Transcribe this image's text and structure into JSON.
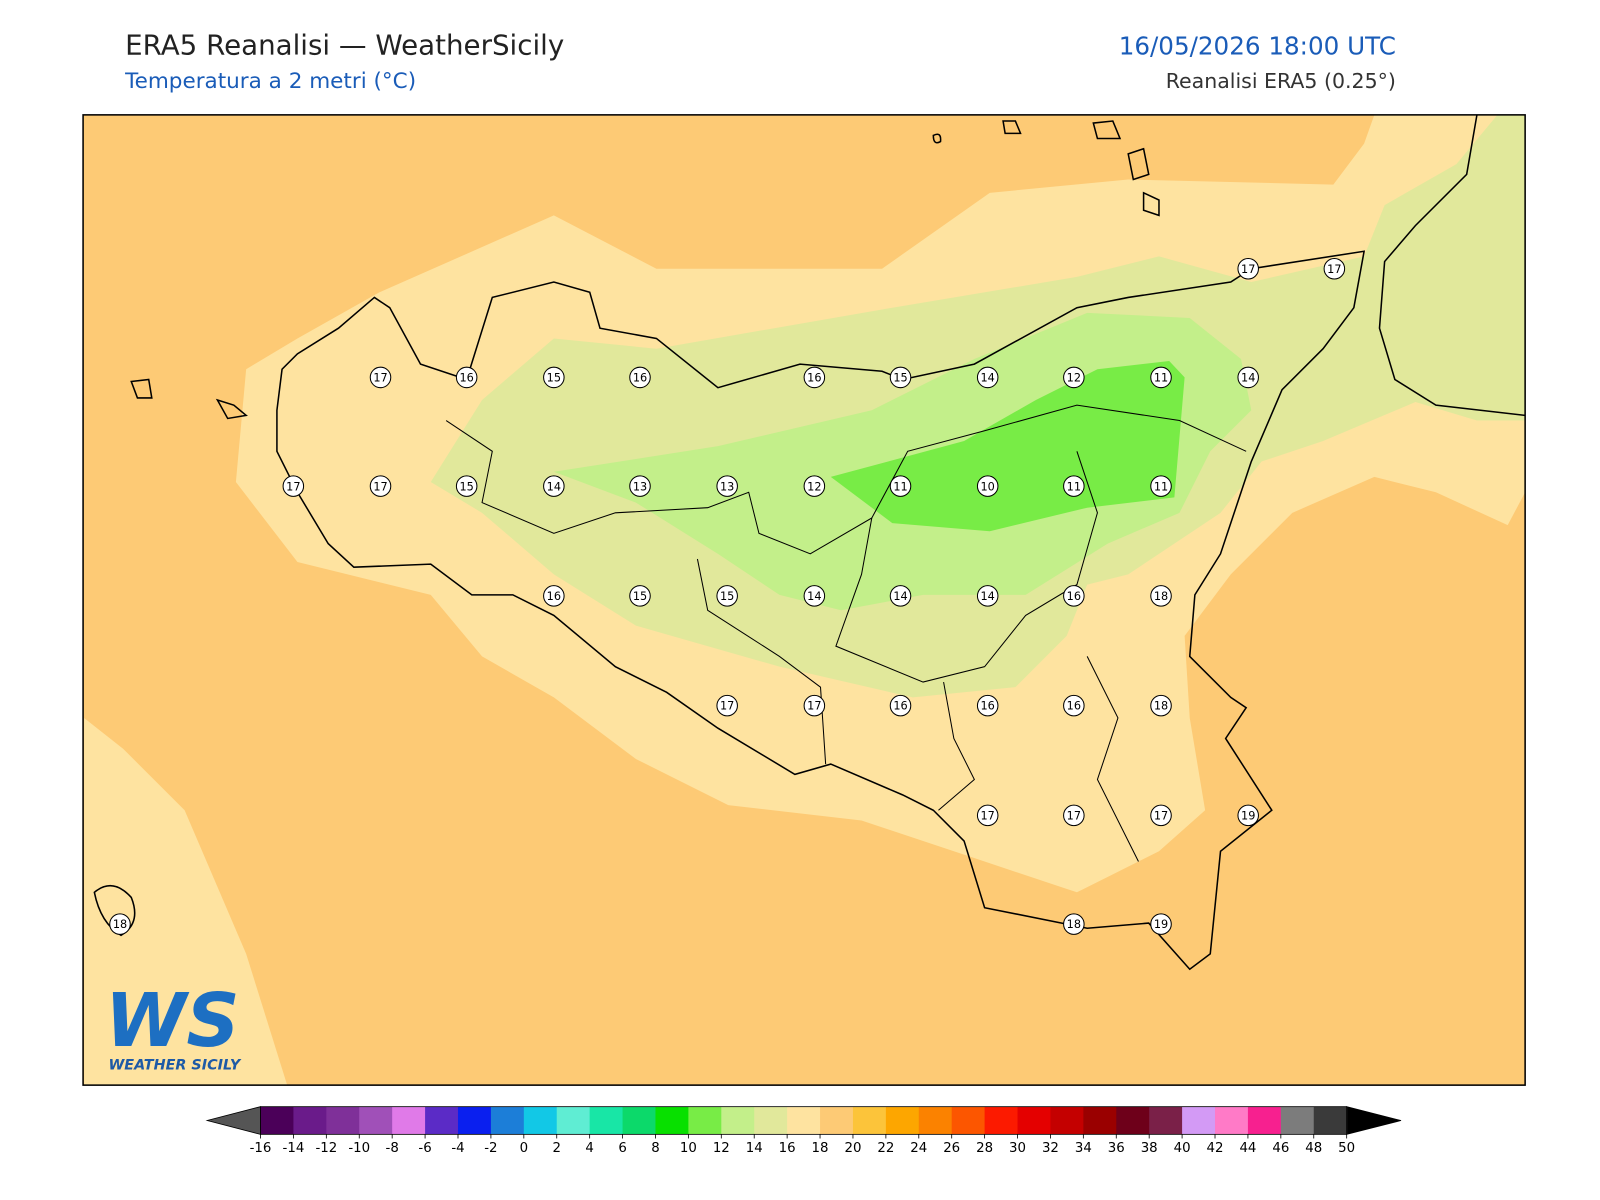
{
  "header": {
    "title": "ERA5 Reanalisi — WeatherSicily",
    "subtitle": "Temperatura a 2 metri (°C)",
    "datetime": "16/05/2026 18:00 UTC",
    "source": "Reanalisi ERA5 (0.25°)"
  },
  "stations": [
    17,
    16,
    15,
    16,
    16,
    15,
    14,
    12,
    11,
    14,
    17,
    17,
    17,
    17,
    15,
    14,
    13,
    13,
    12,
    11,
    10,
    11,
    11,
    16,
    15,
    15,
    14,
    14,
    14,
    16,
    18,
    17,
    17,
    16,
    16,
    16,
    18,
    17,
    17,
    17,
    19,
    18,
    18,
    19
  ],
  "colorbar": {
    "ticks": [
      -16,
      -14,
      -12,
      -10,
      -8,
      -6,
      -4,
      -2,
      0,
      2,
      4,
      6,
      8,
      10,
      12,
      14,
      16,
      18,
      20,
      22,
      24,
      26,
      28,
      30,
      32,
      34,
      36,
      38,
      40,
      42,
      44,
      46,
      48,
      50
    ],
    "colors": [
      "#4b0059",
      "#6a1b8a",
      "#7f3099",
      "#a050b8",
      "#e07ae8",
      "#5b2bc6",
      "#0a1fef",
      "#1c7ed8",
      "#12c8e6",
      "#5fedd3",
      "#18e6a6",
      "#0cd96a",
      "#08e000",
      "#78ec46",
      "#c3ef8a",
      "#e1e89b",
      "#fee3a0",
      "#fdca75",
      "#fcc43a",
      "#fda600",
      "#fb8200",
      "#fc5600",
      "#fc1a00",
      "#e40000",
      "#c40000",
      "#9a0000",
      "#6e001a",
      "#7a2048",
      "#d39af5",
      "#ff7ac7",
      "#f7208f",
      "#7c7c7c",
      "#3a3a3a"
    ],
    "under_color": "#555555",
    "over_color": "#000000"
  },
  "logo": {
    "mark": "WS",
    "name": "WEATHER SICILY"
  }
}
